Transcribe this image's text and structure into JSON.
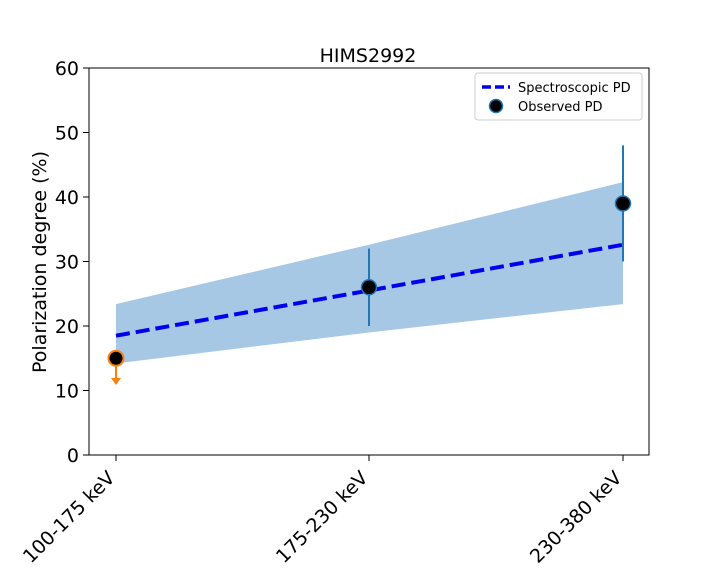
{
  "chart_data": {
    "type": "line",
    "title": "HIMS2992",
    "xlabel": "",
    "ylabel": "Polarization degree (%)",
    "categories": [
      "100-175 keV",
      "175-230 keV",
      "230-380 keV"
    ],
    "ylim": [
      0,
      60
    ],
    "yticks": [
      0,
      10,
      20,
      30,
      40,
      50,
      60
    ],
    "grid": false,
    "legend_position": "top-right",
    "series": [
      {
        "name": "Spectroscopic PD",
        "kind": "dashed-line",
        "color": "#0000ee",
        "values": [
          18.5,
          25.5,
          32.6
        ],
        "band_lower": [
          14.2,
          19.0,
          23.4
        ],
        "band_upper": [
          23.4,
          32.6,
          42.3
        ],
        "band_color": "#a6c8e4"
      },
      {
        "name": "Observed PD",
        "kind": "scatter-errorbar",
        "marker_color": "#000000",
        "edge_color": "#1f77b4",
        "points": [
          {
            "category": "100-175 keV",
            "y": 15,
            "upper_limit": true,
            "limit_color": "#ff7f0e"
          },
          {
            "category": "175-230 keV",
            "y": 26,
            "err_low": 20,
            "err_high": 32
          },
          {
            "category": "230-380 keV",
            "y": 39,
            "err_low": 30,
            "err_high": 48
          }
        ]
      }
    ]
  }
}
